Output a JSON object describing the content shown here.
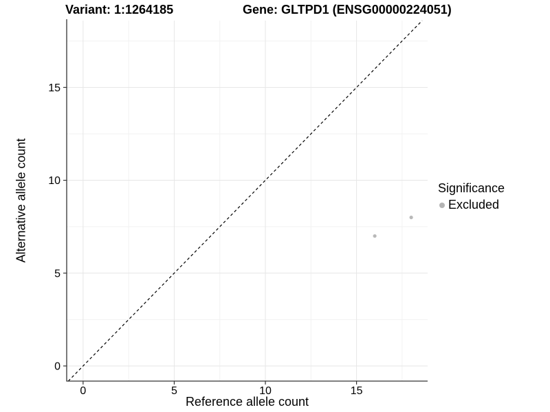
{
  "chart_data": {
    "type": "scatter",
    "title_left": "Variant: 1:1264185",
    "title_right": "Gene: GLTPD1 (ENSG00000224051)",
    "xlabel": "Reference allele count",
    "ylabel": "Alternative allele count",
    "x_ticks": [
      0,
      5,
      10,
      15
    ],
    "y_ticks": [
      0,
      5,
      10,
      15
    ],
    "x_minor_ticks": [
      2.5,
      7.5,
      12.5,
      17.5
    ],
    "y_minor_ticks": [
      2.5,
      7.5,
      12.5,
      17.5
    ],
    "xlim": [
      -0.9,
      18.9
    ],
    "ylim": [
      -0.815,
      18.6
    ],
    "grid": true,
    "legend_position": "right",
    "series": [
      {
        "name": "Excluded",
        "color": "#b9b9b9",
        "points": [
          {
            "x": 16,
            "y": 7
          },
          {
            "x": 18,
            "y": 8
          }
        ]
      }
    ],
    "reference_line": {
      "slope": 1,
      "intercept": 0,
      "style": "dashed",
      "color": "#000000"
    },
    "legend": {
      "title": "Significance",
      "items": [
        {
          "label": "Excluded",
          "color": "#b3b3b3"
        }
      ]
    },
    "colors": {
      "axis_line": "#333333",
      "tick_mark": "#333333",
      "grid_major": "#e6e6e6",
      "grid_minor": "#f2f2f2",
      "text": "#000000"
    }
  }
}
